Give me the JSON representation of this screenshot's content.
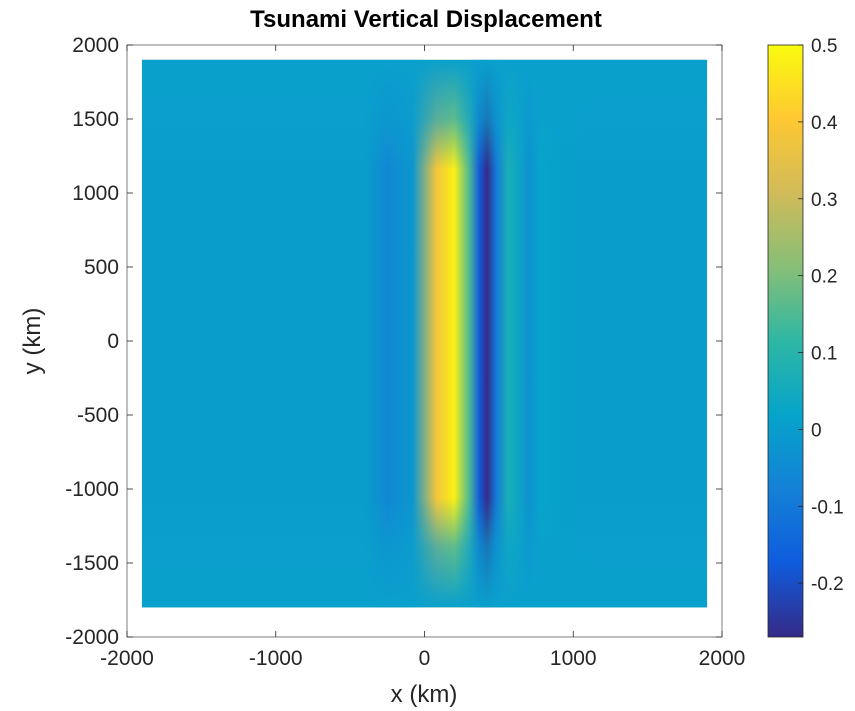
{
  "chart_data": {
    "type": "heatmap",
    "title": "Tsunami Vertical Displacement",
    "xlabel": "x (km)",
    "ylabel": "y (km)",
    "xlim": [
      -2000,
      2000
    ],
    "ylim": [
      -2000,
      2000
    ],
    "data_extent": {
      "x": [
        -1900,
        1900
      ],
      "y": [
        -1800,
        1900
      ]
    },
    "xticks": [
      -2000,
      -1000,
      0,
      1000,
      2000
    ],
    "yticks": [
      2000,
      1500,
      1000,
      500,
      0,
      -500,
      -1000,
      -1500,
      -2000
    ],
    "xtick_labels": [
      "-2000",
      "-1000",
      "0",
      "1000",
      "2000"
    ],
    "ytick_labels": [
      "2000",
      "1500",
      "1000",
      "500",
      "0",
      "-500",
      "-1000",
      "-1500",
      "-2000"
    ],
    "colormap": "parula",
    "colorbar": {
      "range": [
        -0.27,
        0.5
      ],
      "ticks": [
        0.5,
        0.4,
        0.3,
        0.2,
        0.1,
        0,
        -0.1,
        -0.2
      ],
      "tick_labels": [
        "0.5",
        "0.4",
        "0.3",
        "0.2",
        "0.1",
        "0",
        "-0.1",
        "-0.2"
      ]
    },
    "wave_profile": {
      "description_points_x_km": [
        -1900,
        -400,
        -250,
        -80,
        80,
        200,
        300,
        370,
        420,
        480,
        560,
        620,
        700,
        780,
        900,
        1100,
        1900
      ],
      "displacement_at_y0": [
        0,
        0,
        -0.06,
        -0.02,
        0.38,
        0.48,
        0.15,
        -0.18,
        -0.27,
        -0.1,
        0.07,
        0.04,
        -0.03,
        0.02,
        0.01,
        0,
        0
      ]
    },
    "grid": false
  }
}
